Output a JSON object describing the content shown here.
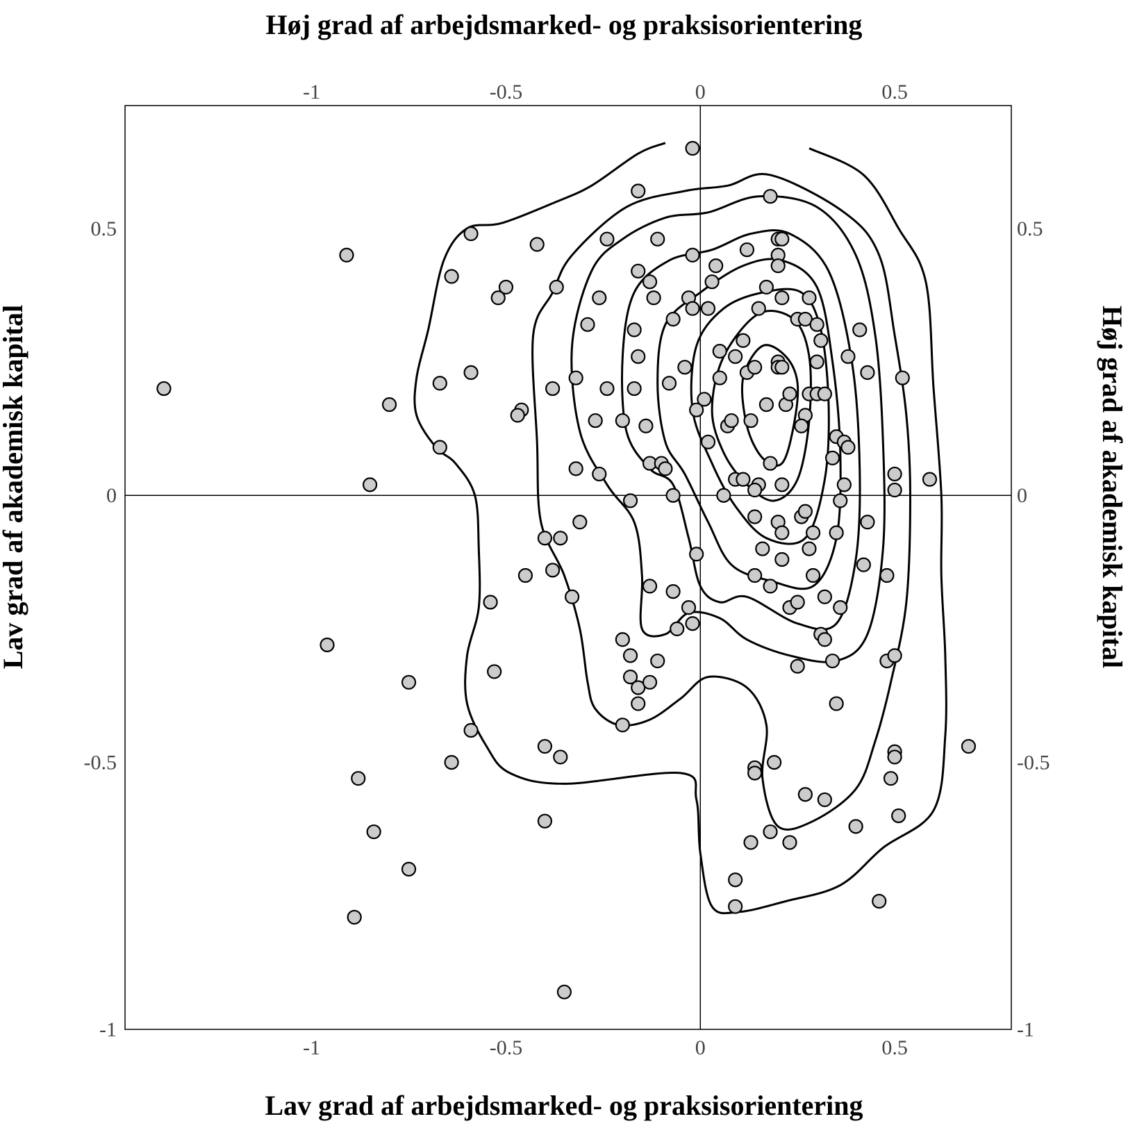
{
  "chart_data": {
    "type": "scatter",
    "title": "",
    "xlabel_top": "Høj grad af arbejdsmarked- og praksisorientering",
    "xlabel_bottom": "Lav grad af arbejdsmarked- og praksisorientering",
    "ylabel_left": "Lav grad af akademisk kapital",
    "ylabel_right": "Høj grad af akademisk kapital",
    "xlim": [
      -1.48,
      0.8
    ],
    "ylim": [
      -1.0,
      0.73
    ],
    "x_ticks": [
      -1,
      -0.5,
      0,
      0.5
    ],
    "x_tick_labels": [
      "-1",
      "-0.5",
      "0",
      "0.5"
    ],
    "y_ticks": [
      -1,
      -0.5,
      0,
      0.5
    ],
    "y_tick_labels": [
      "-1",
      "-0.5",
      "0",
      "0.5"
    ],
    "reference_lines": {
      "x": 0,
      "y": 0
    },
    "grid": false,
    "point_fill": "#cccccc",
    "point_stroke": "#000000",
    "contour_color": "#000000",
    "points": [
      [
        -1.38,
        0.2
      ],
      [
        -0.91,
        0.45
      ],
      [
        -0.8,
        0.17
      ],
      [
        -0.85,
        0.02
      ],
      [
        -0.96,
        -0.28
      ],
      [
        -0.75,
        -0.35
      ],
      [
        -0.88,
        -0.53
      ],
      [
        -0.84,
        -0.63
      ],
      [
        -0.75,
        -0.7
      ],
      [
        -0.89,
        -0.79
      ],
      [
        -0.59,
        0.49
      ],
      [
        -0.64,
        0.41
      ],
      [
        -0.5,
        0.39
      ],
      [
        -0.52,
        0.37
      ],
      [
        -0.67,
        0.21
      ],
      [
        -0.59,
        0.23
      ],
      [
        -0.46,
        0.16
      ],
      [
        -0.47,
        0.15
      ],
      [
        -0.67,
        0.09
      ],
      [
        -0.42,
        0.47
      ],
      [
        -0.54,
        -0.2
      ],
      [
        -0.53,
        -0.33
      ],
      [
        -0.59,
        -0.44
      ],
      [
        -0.64,
        -0.5
      ],
      [
        -0.45,
        -0.15
      ],
      [
        -0.37,
        0.39
      ],
      [
        -0.38,
        0.2
      ],
      [
        -0.32,
        0.22
      ],
      [
        -0.32,
        0.05
      ],
      [
        -0.4,
        -0.08
      ],
      [
        -0.36,
        -0.08
      ],
      [
        -0.38,
        -0.14
      ],
      [
        -0.33,
        -0.19
      ],
      [
        -0.31,
        -0.05
      ],
      [
        -0.4,
        -0.47
      ],
      [
        -0.36,
        -0.49
      ],
      [
        -0.4,
        -0.61
      ],
      [
        -0.35,
        -0.93
      ],
      [
        -0.24,
        0.48
      ],
      [
        -0.26,
        0.37
      ],
      [
        -0.29,
        0.32
      ],
      [
        -0.24,
        0.2
      ],
      [
        -0.27,
        0.14
      ],
      [
        -0.26,
        0.04
      ],
      [
        -0.16,
        0.57
      ],
      [
        -0.11,
        0.48
      ],
      [
        -0.16,
        0.42
      ],
      [
        -0.13,
        0.4
      ],
      [
        -0.12,
        0.37
      ],
      [
        -0.17,
        0.31
      ],
      [
        -0.16,
        0.26
      ],
      [
        -0.17,
        0.2
      ],
      [
        -0.2,
        0.14
      ],
      [
        -0.14,
        0.13
      ],
      [
        -0.13,
        0.06
      ],
      [
        -0.1,
        0.06
      ],
      [
        -0.09,
        0.05
      ],
      [
        -0.07,
        0.0
      ],
      [
        -0.18,
        -0.01
      ],
      [
        -0.08,
        0.21
      ],
      [
        -0.07,
        0.33
      ],
      [
        -0.04,
        0.24
      ],
      [
        -0.03,
        0.37
      ],
      [
        -0.02,
        0.35
      ],
      [
        -0.02,
        0.45
      ],
      [
        -0.02,
        0.65
      ],
      [
        -0.13,
        -0.17
      ],
      [
        -0.07,
        -0.18
      ],
      [
        -0.03,
        -0.21
      ],
      [
        -0.06,
        -0.25
      ],
      [
        -0.02,
        -0.24
      ],
      [
        -0.2,
        -0.27
      ],
      [
        -0.18,
        -0.3
      ],
      [
        -0.11,
        -0.31
      ],
      [
        -0.18,
        -0.34
      ],
      [
        -0.16,
        -0.36
      ],
      [
        -0.13,
        -0.35
      ],
      [
        -0.16,
        -0.39
      ],
      [
        -0.2,
        -0.43
      ],
      [
        -0.01,
        -0.11
      ],
      [
        -0.01,
        0.16
      ],
      [
        0.01,
        0.18
      ],
      [
        0.02,
        0.1
      ],
      [
        0.04,
        0.43
      ],
      [
        0.03,
        0.4
      ],
      [
        0.02,
        0.35
      ],
      [
        0.05,
        0.27
      ],
      [
        0.05,
        0.22
      ],
      [
        0.07,
        0.13
      ],
      [
        0.08,
        0.14
      ],
      [
        0.09,
        0.26
      ],
      [
        0.09,
        0.03
      ],
      [
        0.06,
        0.0
      ],
      [
        0.12,
        0.46
      ],
      [
        0.11,
        0.29
      ],
      [
        0.12,
        0.23
      ],
      [
        0.14,
        0.24
      ],
      [
        0.13,
        0.14
      ],
      [
        0.11,
        0.03
      ],
      [
        0.15,
        0.02
      ],
      [
        0.14,
        0.01
      ],
      [
        0.17,
        0.17
      ],
      [
        0.15,
        0.35
      ],
      [
        0.17,
        0.39
      ],
      [
        0.18,
        0.56
      ],
      [
        0.2,
        0.48
      ],
      [
        0.21,
        0.48
      ],
      [
        0.2,
        0.45
      ],
      [
        0.2,
        0.43
      ],
      [
        0.21,
        0.37
      ],
      [
        0.2,
        0.25
      ],
      [
        0.2,
        0.24
      ],
      [
        0.21,
        0.24
      ],
      [
        0.22,
        0.17
      ],
      [
        0.23,
        0.19
      ],
      [
        0.18,
        0.06
      ],
      [
        0.21,
        0.02
      ],
      [
        0.14,
        -0.04
      ],
      [
        0.2,
        -0.05
      ],
      [
        0.21,
        -0.07
      ],
      [
        0.16,
        -0.1
      ],
      [
        0.21,
        -0.12
      ],
      [
        0.14,
        -0.15
      ],
      [
        0.18,
        -0.17
      ],
      [
        0.23,
        -0.21
      ],
      [
        0.25,
        -0.2
      ],
      [
        0.28,
        -0.1
      ],
      [
        0.29,
        -0.15
      ],
      [
        0.26,
        -0.04
      ],
      [
        0.27,
        -0.03
      ],
      [
        0.29,
        -0.07
      ],
      [
        0.25,
        0.33
      ],
      [
        0.27,
        0.33
      ],
      [
        0.28,
        0.37
      ],
      [
        0.3,
        0.32
      ],
      [
        0.31,
        0.29
      ],
      [
        0.3,
        0.25
      ],
      [
        0.28,
        0.19
      ],
      [
        0.3,
        0.19
      ],
      [
        0.32,
        0.19
      ],
      [
        0.27,
        0.15
      ],
      [
        0.26,
        0.13
      ],
      [
        0.35,
        0.11
      ],
      [
        0.37,
        0.1
      ],
      [
        0.38,
        0.09
      ],
      [
        0.34,
        0.07
      ],
      [
        0.37,
        0.02
      ],
      [
        0.36,
        -0.01
      ],
      [
        0.35,
        -0.07
      ],
      [
        0.38,
        0.26
      ],
      [
        0.41,
        0.31
      ],
      [
        0.43,
        0.23
      ],
      [
        0.32,
        -0.19
      ],
      [
        0.36,
        -0.21
      ],
      [
        0.31,
        -0.26
      ],
      [
        0.32,
        -0.27
      ],
      [
        0.34,
        -0.31
      ],
      [
        0.25,
        -0.32
      ],
      [
        0.35,
        -0.39
      ],
      [
        0.42,
        -0.13
      ],
      [
        0.43,
        -0.05
      ],
      [
        0.5,
        0.04
      ],
      [
        0.5,
        0.01
      ],
      [
        0.48,
        -0.15
      ],
      [
        0.48,
        -0.31
      ],
      [
        0.5,
        -0.3
      ],
      [
        0.52,
        0.22
      ],
      [
        0.59,
        0.03
      ],
      [
        0.19,
        -0.5
      ],
      [
        0.14,
        -0.51
      ],
      [
        0.14,
        -0.52
      ],
      [
        0.5,
        -0.48
      ],
      [
        0.5,
        -0.49
      ],
      [
        0.49,
        -0.53
      ],
      [
        0.32,
        -0.57
      ],
      [
        0.27,
        -0.56
      ],
      [
        0.4,
        -0.62
      ],
      [
        0.51,
        -0.6
      ],
      [
        0.18,
        -0.63
      ],
      [
        0.13,
        -0.65
      ],
      [
        0.23,
        -0.65
      ],
      [
        0.09,
        -0.72
      ],
      [
        0.09,
        -0.77
      ],
      [
        0.46,
        -0.76
      ],
      [
        0.69,
        -0.47
      ]
    ],
    "contours": [
      [
        [
          -0.09,
          0.66
        ],
        [
          -0.16,
          0.64
        ],
        [
          -0.28,
          0.58
        ],
        [
          -0.37,
          0.55
        ],
        [
          -0.51,
          0.51
        ],
        [
          -0.6,
          0.5
        ],
        [
          -0.66,
          0.44
        ],
        [
          -0.7,
          0.31
        ],
        [
          -0.73,
          0.22
        ],
        [
          -0.73,
          0.15
        ],
        [
          -0.68,
          0.09
        ],
        [
          -0.63,
          0.06
        ],
        [
          -0.58,
          0.0
        ],
        [
          -0.57,
          -0.1
        ],
        [
          -0.57,
          -0.21
        ],
        [
          -0.6,
          -0.3
        ],
        [
          -0.6,
          -0.39
        ],
        [
          -0.55,
          -0.47
        ],
        [
          -0.49,
          -0.52
        ],
        [
          -0.35,
          -0.54
        ],
        [
          -0.05,
          -0.52
        ],
        [
          -0.01,
          -0.57
        ],
        [
          0.0,
          -0.67
        ],
        [
          0.03,
          -0.77
        ],
        [
          0.1,
          -0.78
        ],
        [
          0.22,
          -0.76
        ],
        [
          0.36,
          -0.73
        ],
        [
          0.47,
          -0.66
        ],
        [
          0.6,
          -0.59
        ],
        [
          0.63,
          -0.45
        ],
        [
          0.63,
          -0.3
        ],
        [
          0.62,
          -0.15
        ],
        [
          0.62,
          0.0
        ],
        [
          0.6,
          0.2
        ],
        [
          0.58,
          0.4
        ],
        [
          0.51,
          0.5
        ],
        [
          0.42,
          0.6
        ],
        [
          0.28,
          0.65
        ]
      ],
      [
        [
          -0.38,
          0.38
        ],
        [
          -0.43,
          0.3
        ],
        [
          -0.42,
          0.1
        ],
        [
          -0.41,
          -0.05
        ],
        [
          -0.35,
          -0.15
        ],
        [
          -0.31,
          -0.25
        ],
        [
          -0.29,
          -0.35
        ],
        [
          -0.27,
          -0.4
        ],
        [
          -0.21,
          -0.43
        ],
        [
          -0.13,
          -0.42
        ],
        [
          -0.05,
          -0.38
        ],
        [
          0.02,
          -0.34
        ],
        [
          0.12,
          -0.36
        ],
        [
          0.17,
          -0.43
        ],
        [
          0.16,
          -0.53
        ],
        [
          0.2,
          -0.62
        ],
        [
          0.29,
          -0.61
        ],
        [
          0.4,
          -0.55
        ],
        [
          0.45,
          -0.46
        ],
        [
          0.49,
          -0.35
        ],
        [
          0.53,
          -0.2
        ],
        [
          0.54,
          0.0
        ],
        [
          0.53,
          0.15
        ],
        [
          0.5,
          0.3
        ],
        [
          0.46,
          0.45
        ],
        [
          0.37,
          0.53
        ],
        [
          0.18,
          0.6
        ],
        [
          0.07,
          0.58
        ],
        [
          -0.04,
          0.57
        ],
        [
          -0.19,
          0.54
        ],
        [
          -0.33,
          0.45
        ]
      ],
      [
        [
          -0.28,
          0.42
        ],
        [
          -0.33,
          0.28
        ],
        [
          -0.31,
          0.12
        ],
        [
          -0.24,
          0.02
        ],
        [
          -0.17,
          -0.05
        ],
        [
          -0.15,
          -0.15
        ],
        [
          -0.15,
          -0.25
        ],
        [
          -0.09,
          -0.26
        ],
        [
          -0.03,
          -0.22
        ],
        [
          0.05,
          -0.23
        ],
        [
          0.12,
          -0.27
        ],
        [
          0.23,
          -0.3
        ],
        [
          0.35,
          -0.31
        ],
        [
          0.43,
          -0.26
        ],
        [
          0.47,
          -0.1
        ],
        [
          0.47,
          0.1
        ],
        [
          0.45,
          0.3
        ],
        [
          0.4,
          0.45
        ],
        [
          0.3,
          0.54
        ],
        [
          0.15,
          0.56
        ],
        [
          0.02,
          0.53
        ],
        [
          -0.09,
          0.52
        ],
        [
          -0.2,
          0.48
        ]
      ],
      [
        [
          -0.17,
          0.38
        ],
        [
          -0.2,
          0.26
        ],
        [
          -0.19,
          0.12
        ],
        [
          -0.13,
          0.05
        ],
        [
          -0.07,
          0.02
        ],
        [
          -0.03,
          -0.08
        ],
        [
          0.0,
          -0.17
        ],
        [
          0.05,
          -0.2
        ],
        [
          0.12,
          -0.19
        ],
        [
          0.25,
          -0.24
        ],
        [
          0.35,
          -0.24
        ],
        [
          0.4,
          -0.12
        ],
        [
          0.41,
          0.05
        ],
        [
          0.39,
          0.25
        ],
        [
          0.33,
          0.42
        ],
        [
          0.23,
          0.49
        ],
        [
          0.13,
          0.49
        ],
        [
          0.03,
          0.46
        ],
        [
          -0.08,
          0.44
        ]
      ],
      [
        [
          -0.09,
          0.32
        ],
        [
          -0.11,
          0.21
        ],
        [
          -0.09,
          0.1
        ],
        [
          -0.04,
          0.04
        ],
        [
          0.02,
          -0.05
        ],
        [
          0.08,
          -0.13
        ],
        [
          0.18,
          -0.16
        ],
        [
          0.29,
          -0.17
        ],
        [
          0.35,
          -0.08
        ],
        [
          0.36,
          0.08
        ],
        [
          0.34,
          0.25
        ],
        [
          0.3,
          0.39
        ],
        [
          0.21,
          0.44
        ],
        [
          0.11,
          0.43
        ],
        [
          0.0,
          0.38
        ]
      ],
      [
        [
          -0.01,
          0.28
        ],
        [
          -0.02,
          0.16
        ],
        [
          0.03,
          0.06
        ],
        [
          0.09,
          -0.02
        ],
        [
          0.17,
          -0.08
        ],
        [
          0.27,
          -0.08
        ],
        [
          0.32,
          0.03
        ],
        [
          0.33,
          0.17
        ],
        [
          0.31,
          0.31
        ],
        [
          0.26,
          0.38
        ],
        [
          0.16,
          0.38
        ],
        [
          0.06,
          0.35
        ]
      ],
      [
        [
          0.06,
          0.26
        ],
        [
          0.03,
          0.16
        ],
        [
          0.06,
          0.08
        ],
        [
          0.12,
          0.02
        ],
        [
          0.19,
          -0.01
        ],
        [
          0.25,
          0.03
        ],
        [
          0.28,
          0.14
        ],
        [
          0.28,
          0.26
        ],
        [
          0.24,
          0.33
        ],
        [
          0.15,
          0.34
        ]
      ],
      [
        [
          0.11,
          0.22
        ],
        [
          0.12,
          0.13
        ],
        [
          0.16,
          0.07
        ],
        [
          0.21,
          0.06
        ],
        [
          0.24,
          0.13
        ],
        [
          0.25,
          0.21
        ],
        [
          0.22,
          0.26
        ],
        [
          0.16,
          0.28
        ]
      ]
    ]
  }
}
